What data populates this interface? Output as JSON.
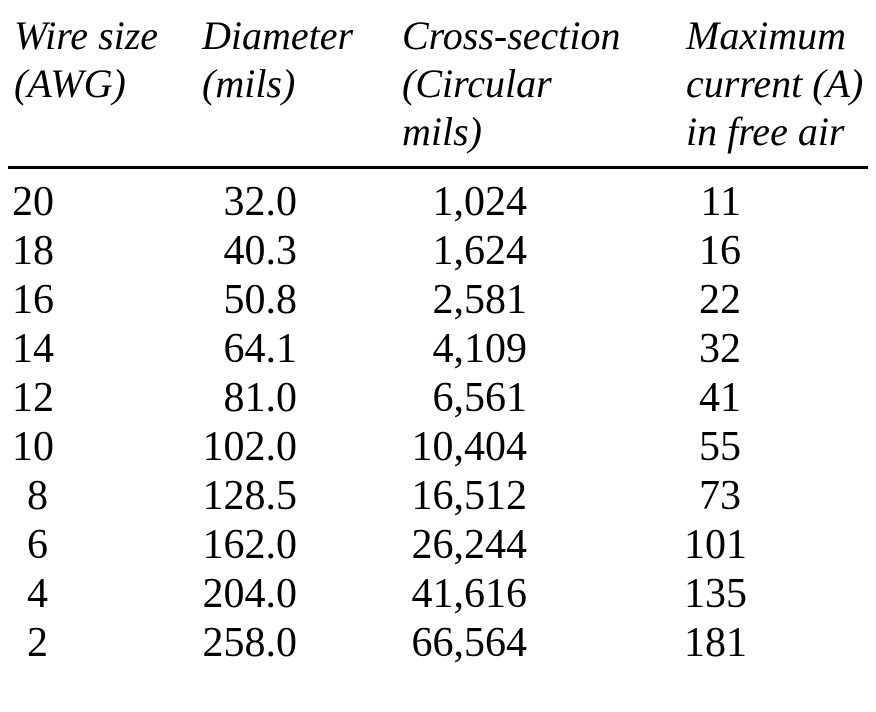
{
  "table": {
    "headers": [
      {
        "lines": [
          "Wire size",
          "(AWG)"
        ]
      },
      {
        "lines": [
          "Diameter",
          "(mils)"
        ]
      },
      {
        "lines": [
          "Cross-section",
          "(Circular",
          "mils)"
        ]
      },
      {
        "lines": [
          "Maximum",
          "current (A)",
          "in free air"
        ]
      }
    ],
    "rows": [
      {
        "awg": "20",
        "diameter_mils": "32.0",
        "cross_section_cmils": "1,024",
        "max_current_a": "11"
      },
      {
        "awg": "18",
        "diameter_mils": "40.3",
        "cross_section_cmils": "1,624",
        "max_current_a": "16"
      },
      {
        "awg": "16",
        "diameter_mils": "50.8",
        "cross_section_cmils": "2,581",
        "max_current_a": "22"
      },
      {
        "awg": "14",
        "diameter_mils": "64.1",
        "cross_section_cmils": "4,109",
        "max_current_a": "32"
      },
      {
        "awg": "12",
        "diameter_mils": "81.0",
        "cross_section_cmils": "6,561",
        "max_current_a": "41"
      },
      {
        "awg": "10",
        "diameter_mils": "102.0",
        "cross_section_cmils": "10,404",
        "max_current_a": "55"
      },
      {
        "awg": "8",
        "diameter_mils": "128.5",
        "cross_section_cmils": "16,512",
        "max_current_a": "73"
      },
      {
        "awg": "6",
        "diameter_mils": "162.0",
        "cross_section_cmils": "26,244",
        "max_current_a": "101"
      },
      {
        "awg": "4",
        "diameter_mils": "204.0",
        "cross_section_cmils": "41,616",
        "max_current_a": "135"
      },
      {
        "awg": "2",
        "diameter_mils": "258.0",
        "cross_section_cmils": "66,564",
        "max_current_a": "181"
      }
    ],
    "text_color": "#000000",
    "background_color": "#ffffff"
  }
}
